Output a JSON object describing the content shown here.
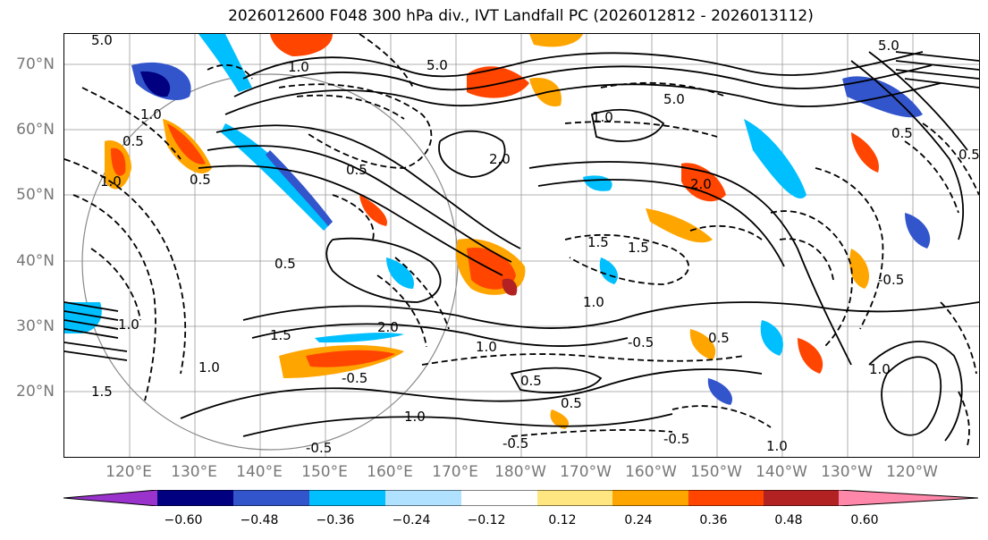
{
  "title": "2026012600 F048 300 hPa div., IVT Landfall PC (2026012812 - 2026013112)",
  "lat_labels": [
    "70°N",
    "60°N",
    "50°N",
    "40°N",
    "30°N",
    "20°N"
  ],
  "lon_labels": [
    "120°E",
    "130°E",
    "140°E",
    "150°E",
    "160°E",
    "170°E",
    "180°W",
    "170°W",
    "160°W",
    "150°W",
    "140°W",
    "130°W",
    "120°W"
  ],
  "colorbar": {
    "colors": [
      "#9933cc",
      "#000080",
      "#3355cc",
      "#00bfff",
      "#b0e2ff",
      "#ffffff",
      "#ffe680",
      "#ffa500",
      "#ff4500",
      "#b22222",
      "#ff88aa"
    ],
    "tick_labels": [
      "−0.60",
      "−0.48",
      "−0.36",
      "−0.24",
      "−0.12",
      "0.12",
      "0.24",
      "0.36",
      "0.48",
      "0.60"
    ]
  },
  "contour_labels": [
    "5.0",
    "1.0",
    "5.0",
    "2.0",
    "5.0",
    "5.0",
    "0.5",
    "1.0",
    "0.5",
    "2.0",
    "1.5",
    "0.5",
    "1.0",
    "1.5",
    "2.0",
    "1.5",
    "0.5",
    "1.0",
    "0.5",
    "1.0",
    "1.5",
    "0.5",
    "1.0",
    "-0.5",
    "-0.5",
    "0.5",
    "-0.5",
    "1.0",
    "-0.5",
    "1.0",
    "1.0",
    "-0.5",
    "0.5",
    "1.0",
    "-0.5",
    "0.5",
    "1.0"
  ]
}
